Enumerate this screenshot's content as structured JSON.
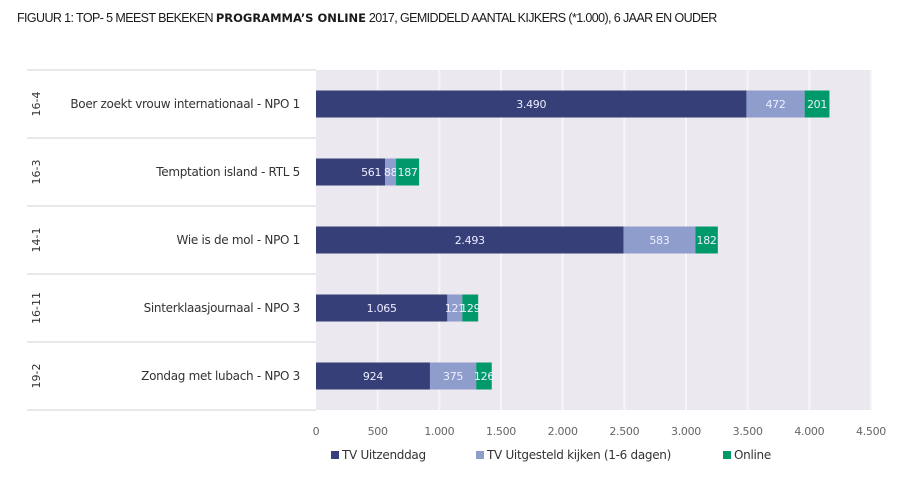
{
  "title": {
    "prefix": "FIGUUR 1: TOP- 5 MEEST BEKEKEN ",
    "bold": "PROGRAMMA’S ONLINE",
    "suffix": " 2017, GEMIDDELD AANTAL KIJKERS (*1.000), 6 JAAR EN OUDER"
  },
  "colors": {
    "tv_uitzenddag": "#363f78",
    "tv_uitgesteld": "#8e9dcc",
    "online": "#00996a",
    "plot_bg": "#ebe8f0",
    "grid": "#f7f5f9"
  },
  "chart_data": {
    "type": "bar",
    "orientation": "horizontal",
    "stacked": true,
    "title": "Top-5 meest bekeken programma's online 2017, gemiddeld aantal kijkers (*1.000), 6 jaar en ouder",
    "categories": [
      "Boer zoekt vrouw internationaal - NPO 1",
      "Temptation island - RTL 5",
      "Wie is de mol - NPO 1",
      "Sinterklaasjournaal - NPO 3",
      "Zondag met lubach - NPO 3"
    ],
    "dates": [
      "16-4",
      "16-3",
      "14-1",
      "16-11",
      "19-2"
    ],
    "series": [
      {
        "name": "TV Uitzenddag",
        "values": [
          3490,
          561,
          2493,
          1065,
          924
        ],
        "labels": [
          "3.490",
          "561",
          "2.493",
          "1.065",
          "924"
        ]
      },
      {
        "name": "TV Uitgesteld kijken (1-6 dagen)",
        "values": [
          472,
          88,
          583,
          121,
          375
        ],
        "labels": [
          "472",
          "88",
          "583",
          "121",
          "375"
        ]
      },
      {
        "name": "Online",
        "values": [
          201,
          187,
          182,
          129,
          126
        ],
        "labels": [
          "201",
          "187",
          "182",
          "129",
          "126"
        ]
      }
    ],
    "xlim": [
      0,
      4500
    ],
    "xticks": [
      0,
      500,
      1000,
      1500,
      2000,
      2500,
      3000,
      3500,
      4000,
      4500
    ],
    "xtick_labels": [
      "0",
      "500",
      "1.000",
      "1.500",
      "2.000",
      "2.500",
      "3.000",
      "3.500",
      "4.000",
      "4.500"
    ],
    "xlabel": "",
    "ylabel": "",
    "grid": true,
    "legend_position": "bottom"
  }
}
